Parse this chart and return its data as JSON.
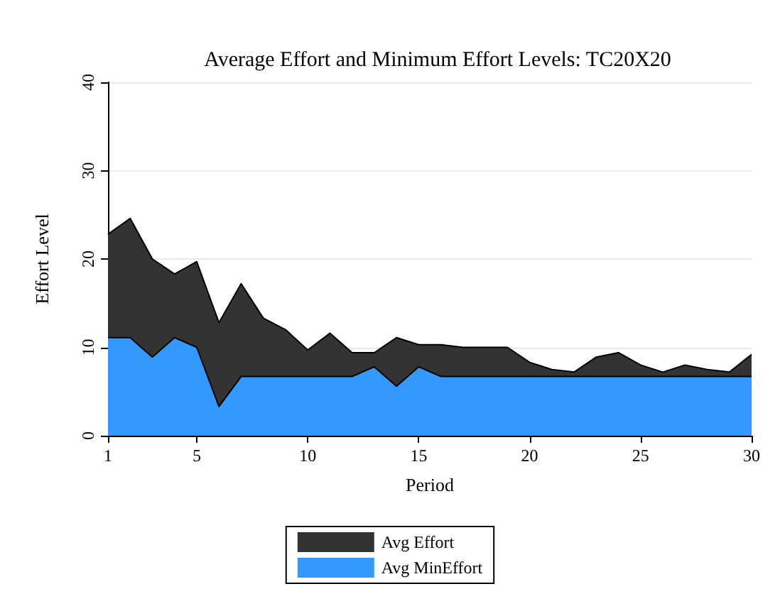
{
  "chart_data": {
    "type": "area",
    "title": "Average Effort and Minimum Effort Levels: TC20X20",
    "xlabel": "Period",
    "ylabel": "Effort Level",
    "x": [
      1,
      2,
      3,
      4,
      5,
      6,
      7,
      8,
      9,
      10,
      11,
      12,
      13,
      14,
      15,
      16,
      17,
      18,
      19,
      20,
      21,
      22,
      23,
      24,
      25,
      26,
      27,
      28,
      29,
      30
    ],
    "xlim": [
      1,
      30
    ],
    "xticks": [
      1,
      5,
      10,
      15,
      20,
      25,
      30
    ],
    "ylim": [
      0,
      40
    ],
    "yticks": [
      0,
      10,
      20,
      30,
      40
    ],
    "grid": "y",
    "legend": "bottom",
    "marker": "none",
    "series": [
      {
        "name": "Avg Effort",
        "color": "#333333",
        "values": [
          22.8,
          24.6,
          20,
          18.3,
          19.7,
          12.8,
          17.2,
          13.3,
          12,
          9.7,
          11.6,
          9.4,
          9.4,
          11.1,
          10.3,
          10.3,
          10,
          10,
          10,
          8.3,
          7.5,
          7.2,
          8.9,
          9.4,
          8,
          7.2,
          8,
          7.5,
          7.2,
          9.2
        ]
      },
      {
        "name": "Avg MinEffort",
        "color": "#3399ff",
        "values": [
          11.1,
          11.1,
          8.9,
          11.1,
          10,
          3.3,
          6.7,
          6.7,
          6.7,
          6.7,
          6.7,
          6.7,
          7.8,
          5.6,
          7.8,
          6.7,
          6.7,
          6.7,
          6.7,
          6.7,
          6.7,
          6.7,
          6.7,
          6.7,
          6.7,
          6.7,
          6.7,
          6.7,
          6.7,
          6.7
        ]
      }
    ]
  }
}
